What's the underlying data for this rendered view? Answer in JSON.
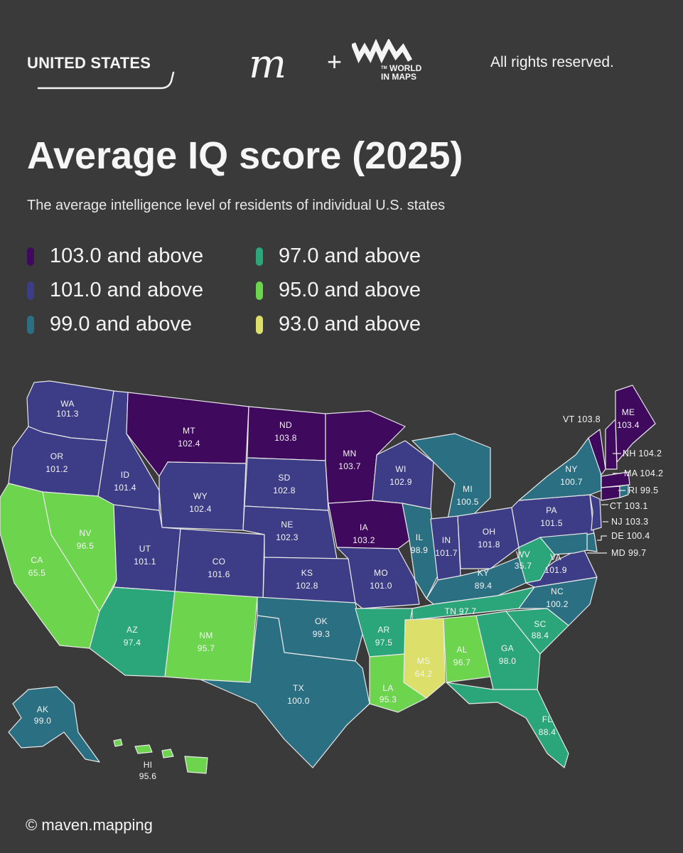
{
  "header": {
    "country": "UNITED STATES",
    "logo_m": "m",
    "logo_plus": "+",
    "logo_world_tm": "TM",
    "logo_world_line1": "WORLD",
    "logo_world_line2": "IN MAPS",
    "rights": "All rights reserved."
  },
  "title": "Average IQ score (2025)",
  "subtitle": "The average intelligence level of residents of individual U.S. states",
  "legend": [
    {
      "label": "103.0 and above",
      "color": "#3f0a5e"
    },
    {
      "label": "101.0 and above",
      "color": "#3d3d87"
    },
    {
      "label": "99.0 and above",
      "color": "#2a6f82"
    },
    {
      "label": "97.0 and above",
      "color": "#2aa67a"
    },
    {
      "label": "95.0 and above",
      "color": "#6dd44e"
    },
    {
      "label": "93.0 and above",
      "color": "#dce06a"
    }
  ],
  "states": {
    "WA": {
      "abbr": "WA",
      "value": "101.3"
    },
    "OR": {
      "abbr": "OR",
      "value": "101.2"
    },
    "CA": {
      "abbr": "CA",
      "value": "65.5"
    },
    "ID": {
      "abbr": "ID",
      "value": "101.4"
    },
    "NV": {
      "abbr": "NV",
      "value": "96.5"
    },
    "MT": {
      "abbr": "MT",
      "value": "102.4"
    },
    "WY": {
      "abbr": "WY",
      "value": "102.4"
    },
    "UT": {
      "abbr": "UT",
      "value": "101.1"
    },
    "AZ": {
      "abbr": "AZ",
      "value": "97.4"
    },
    "CO": {
      "abbr": "CO",
      "value": "101.6"
    },
    "NM": {
      "abbr": "NM",
      "value": "95.7"
    },
    "ND": {
      "abbr": "ND",
      "value": "103.8"
    },
    "SD": {
      "abbr": "SD",
      "value": "102.8"
    },
    "NE": {
      "abbr": "NE",
      "value": "102.3"
    },
    "KS": {
      "abbr": "KS",
      "value": "102.8"
    },
    "OK": {
      "abbr": "OK",
      "value": "99.3"
    },
    "TX": {
      "abbr": "TX",
      "value": "100.0"
    },
    "MN": {
      "abbr": "MN",
      "value": "103.7"
    },
    "IA": {
      "abbr": "IA",
      "value": "103.2"
    },
    "MO": {
      "abbr": "MO",
      "value": "101.0"
    },
    "AR": {
      "abbr": "AR",
      "value": "97.5"
    },
    "LA": {
      "abbr": "LA",
      "value": "95.3"
    },
    "WI": {
      "abbr": "WI",
      "value": "102.9"
    },
    "IL": {
      "abbr": "IL",
      "value": "98.9"
    },
    "MI": {
      "abbr": "MI",
      "value": "100.5"
    },
    "IN": {
      "abbr": "IN",
      "value": "101.7"
    },
    "OH": {
      "abbr": "OH",
      "value": "101.8"
    },
    "KY": {
      "abbr": "KY",
      "value": "89.4"
    },
    "TN": {
      "abbr": "TN",
      "value": "97.7"
    },
    "MS": {
      "abbr": "MS",
      "value": "64.2"
    },
    "AL": {
      "abbr": "AL",
      "value": "96.7"
    },
    "GA": {
      "abbr": "GA",
      "value": "98.0"
    },
    "FL": {
      "abbr": "FL",
      "value": "88.4"
    },
    "SC": {
      "abbr": "SC",
      "value": "88.4"
    },
    "NC": {
      "abbr": "NC",
      "value": "100.2"
    },
    "VA": {
      "abbr": "VA",
      "value": "101.9"
    },
    "WV": {
      "abbr": "WV",
      "value": "35.7"
    },
    "PA": {
      "abbr": "PA",
      "value": "101.5"
    },
    "NY": {
      "abbr": "NY",
      "value": "100.7"
    },
    "ME": {
      "abbr": "ME",
      "value": "103.4"
    },
    "AK": {
      "abbr": "AK",
      "value": "99.0"
    },
    "HI": {
      "abbr": "HI",
      "value": "95.6"
    }
  },
  "callouts": {
    "VT": "VT 103.8",
    "NH": "NH 104.2",
    "MA": "MA 104.2",
    "RI": "RI 99.5",
    "CT": "CT 103.1",
    "NJ": "NJ 103.3",
    "DE": "DE 100.4",
    "MD": "MD 99.7"
  },
  "credit": "© maven.mapping"
}
